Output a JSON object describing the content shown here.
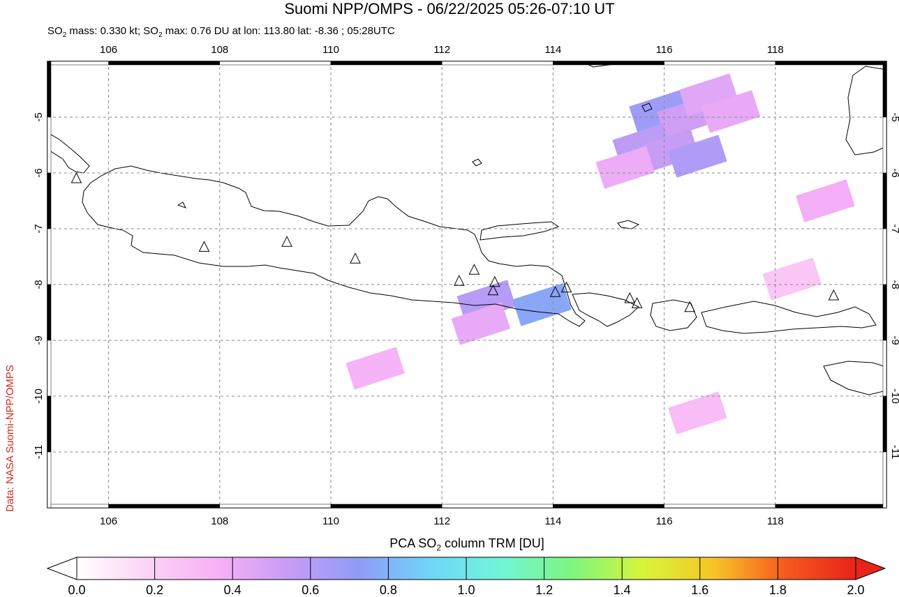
{
  "title": "Suomi NPP/OMPS - 06/22/2025 05:26-07:10 UT",
  "subtitle_parts": {
    "pre1": "SO",
    "sub1": "2",
    "mid": " mass: 0.330 kt; SO",
    "sub2": "2",
    "post": " max: 0.76 DU at lon: 113.80 lat: -8.36 ; 05:28UTC"
  },
  "credit": "Data: NASA Suomi-NPP/OMPS",
  "colorbar": {
    "title_pre": "PCA SO",
    "title_sub": "2",
    "title_post": " column TRM [DU]",
    "ticks": [
      "0.0",
      "0.2",
      "0.4",
      "0.6",
      "0.8",
      "1.0",
      "1.2",
      "1.4",
      "1.6",
      "1.8",
      "2.0"
    ],
    "stops": [
      "#ffffff",
      "#fbd3f5",
      "#f7b0f7",
      "#c79cf5",
      "#8f9cf7",
      "#6fd6f8",
      "#70f5d7",
      "#7ef57e",
      "#d7f53a",
      "#f7c528",
      "#f55a1e",
      "#e8231a"
    ]
  },
  "map": {
    "lon_labels": [
      "106",
      "108",
      "110",
      "112",
      "114",
      "116",
      "118"
    ],
    "lat_labels": [
      "-5",
      "-6",
      "-7",
      "-8",
      "-9",
      "-10",
      "-11"
    ],
    "lon_values": [
      106,
      108,
      110,
      112,
      114,
      116,
      118
    ],
    "lat_values": [
      -5,
      -6,
      -7,
      -8,
      -9,
      -10,
      -11
    ],
    "lon_range": [
      104.9,
      120.0
    ],
    "lat_range": [
      -12.0,
      -4.0
    ],
    "volcanoes": [
      [
        105.42,
        -6.1
      ],
      [
        107.72,
        -7.33
      ],
      [
        109.21,
        -7.24
      ],
      [
        110.44,
        -7.54
      ],
      [
        112.31,
        -7.94
      ],
      [
        112.58,
        -7.74
      ],
      [
        112.95,
        -7.96
      ],
      [
        112.92,
        -8.11
      ],
      [
        114.04,
        -8.14
      ],
      [
        114.24,
        -8.06
      ],
      [
        115.38,
        -8.25
      ],
      [
        115.51,
        -8.34
      ],
      [
        116.46,
        -8.41
      ],
      [
        119.05,
        -8.2
      ]
    ],
    "so2_cells": [
      {
        "lon": 115.9,
        "lat": -4.9,
        "du": 0.68
      },
      {
        "lon": 116.4,
        "lat": -5.0,
        "du": 0.52
      },
      {
        "lon": 115.6,
        "lat": -5.5,
        "du": 0.58
      },
      {
        "lon": 116.1,
        "lat": -5.6,
        "du": 0.55
      },
      {
        "lon": 116.6,
        "lat": -5.7,
        "du": 0.62
      },
      {
        "lon": 116.8,
        "lat": -4.6,
        "du": 0.45
      },
      {
        "lon": 115.3,
        "lat": -5.9,
        "du": 0.4
      },
      {
        "lon": 117.2,
        "lat": -4.9,
        "du": 0.42
      },
      {
        "lon": 112.8,
        "lat": -8.3,
        "du": 0.6
      },
      {
        "lon": 113.8,
        "lat": -8.36,
        "du": 0.76
      },
      {
        "lon": 112.7,
        "lat": -8.7,
        "du": 0.42
      },
      {
        "lon": 110.8,
        "lat": -9.5,
        "du": 0.35
      },
      {
        "lon": 118.9,
        "lat": -6.5,
        "du": 0.38
      },
      {
        "lon": 118.3,
        "lat": -7.9,
        "du": 0.25
      },
      {
        "lon": 116.6,
        "lat": -10.3,
        "du": 0.3
      }
    ]
  }
}
